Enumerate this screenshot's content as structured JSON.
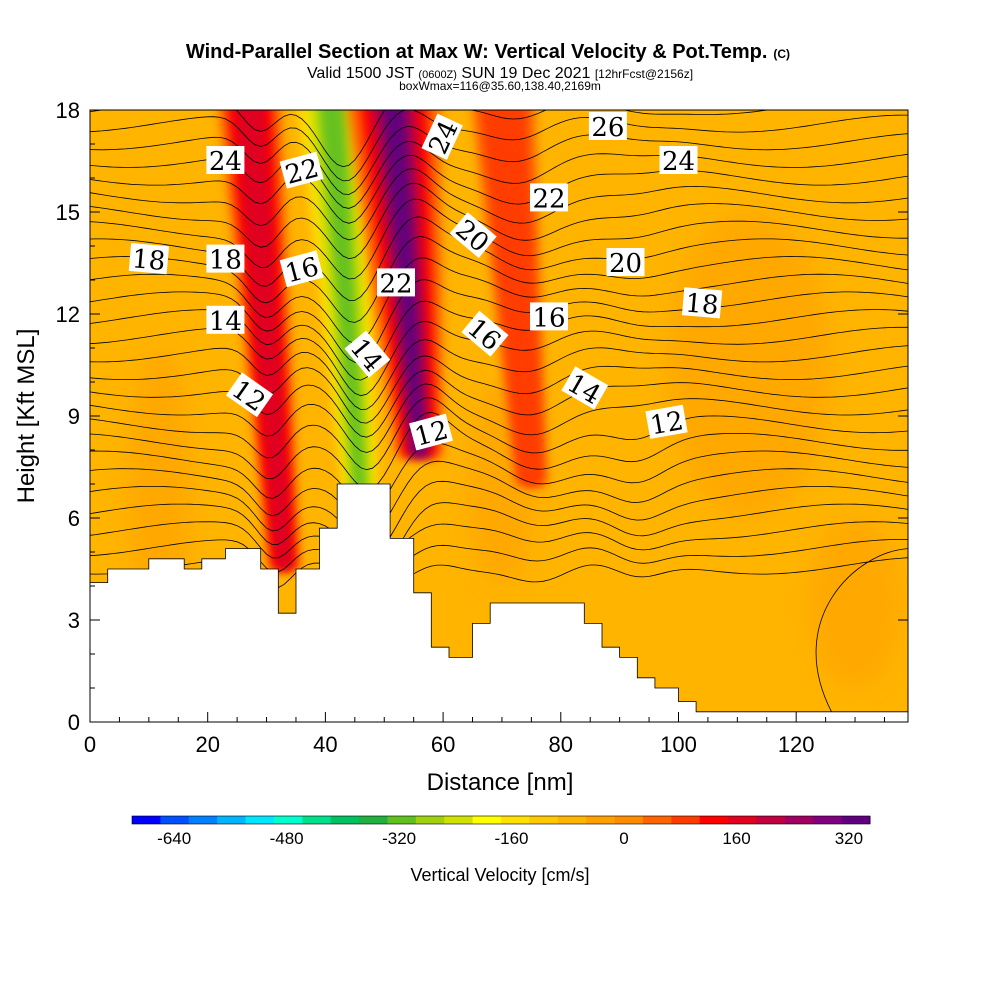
{
  "chart_data": {
    "type": "heatmap",
    "title": "Wind-Parallel Section at Max W: Vertical Velocity & Pot.Temp.",
    "title_mark": "(C)",
    "subtitle": {
      "valid_prefix": "Valid 1500 JST",
      "utc": "(0600Z)",
      "date": "SUN 19 Dec 2021",
      "forecast": "[12hrFcst@2156z]"
    },
    "box_line": "boxWmax=116@35.60,138.40,2169m",
    "xlabel": "Distance [nm]",
    "ylabel": "Height [Kft MSL]",
    "xlim": [
      0,
      139
    ],
    "ylim": [
      0,
      18
    ],
    "x_ticks": [
      0,
      20,
      40,
      60,
      80,
      100,
      120
    ],
    "y_ticks": [
      0,
      3,
      6,
      9,
      12,
      15,
      18
    ],
    "colorbar": {
      "label": "Vertical Velocity [cm/s]",
      "min": -700,
      "max": 350,
      "tick_values": [
        -640,
        -480,
        -320,
        -160,
        0,
        160,
        320
      ],
      "colors": [
        "#0000ff",
        "#0050ff",
        "#0080ff",
        "#00b4ff",
        "#00e6ff",
        "#00ffcc",
        "#00e08a",
        "#00c060",
        "#20b040",
        "#60c020",
        "#a0d010",
        "#d0e000",
        "#ffff00",
        "#ffe000",
        "#ffc800",
        "#ffb400",
        "#ffa000",
        "#ff8c00",
        "#ff6400",
        "#ff3c00",
        "#ff0000",
        "#e00020",
        "#c00040",
        "#a00060",
        "#800080",
        "#600080"
      ]
    },
    "base_fill_color": "#ffb400",
    "terrain_color": "#ffffff",
    "vertical_velocity_features": [
      {
        "x": 46,
        "z_bottom": 6.6,
        "z_top": 18,
        "value": -300,
        "note": "strong downdraft"
      },
      {
        "x": 56,
        "z_bottom": 7.8,
        "z_top": 18,
        "value": 330,
        "note": "strong updraft"
      },
      {
        "x": 33,
        "z_bottom": 4.5,
        "z_top": 18,
        "value": 150,
        "note": "updraft band"
      },
      {
        "x": 75,
        "z_bottom": 7,
        "z_top": 18,
        "value": 100,
        "note": "weak updraft"
      }
    ],
    "potential_temperature_contour_labels": [
      {
        "text": "24",
        "x": 23,
        "z": 16.5,
        "angle": 0
      },
      {
        "text": "22",
        "x": 36,
        "z": 16.2,
        "angle": -15
      },
      {
        "text": "24",
        "x": 60,
        "z": 17.2,
        "angle": -65
      },
      {
        "text": "26",
        "x": 88,
        "z": 17.5,
        "angle": 0
      },
      {
        "text": "24",
        "x": 100,
        "z": 16.5,
        "angle": 0
      },
      {
        "text": "22",
        "x": 78,
        "z": 15.4,
        "angle": 0
      },
      {
        "text": "20",
        "x": 65,
        "z": 14.3,
        "angle": 40
      },
      {
        "text": "18",
        "x": 10,
        "z": 13.6,
        "angle": 5
      },
      {
        "text": "18",
        "x": 23,
        "z": 13.6,
        "angle": 0
      },
      {
        "text": "16",
        "x": 36,
        "z": 13.3,
        "angle": -15
      },
      {
        "text": "22",
        "x": 52,
        "z": 12.9,
        "angle": 0
      },
      {
        "text": "20",
        "x": 91,
        "z": 13.5,
        "angle": 0
      },
      {
        "text": "18",
        "x": 104,
        "z": 12.3,
        "angle": 5
      },
      {
        "text": "14",
        "x": 23,
        "z": 11.8,
        "angle": 0
      },
      {
        "text": "16",
        "x": 67,
        "z": 11.4,
        "angle": 40
      },
      {
        "text": "16",
        "x": 78,
        "z": 11.9,
        "angle": 0
      },
      {
        "text": "14",
        "x": 47,
        "z": 10.8,
        "angle": 50
      },
      {
        "text": "12",
        "x": 27,
        "z": 9.6,
        "angle": 35
      },
      {
        "text": "14",
        "x": 84,
        "z": 9.8,
        "angle": 30
      },
      {
        "text": "12",
        "x": 58,
        "z": 8.5,
        "angle": -15
      },
      {
        "text": "12",
        "x": 98,
        "z": 8.8,
        "angle": -10
      }
    ],
    "terrain_profile": [
      [
        0,
        4.1
      ],
      [
        3,
        4.1
      ],
      [
        3,
        4.5
      ],
      [
        10,
        4.5
      ],
      [
        10,
        4.8
      ],
      [
        16,
        4.8
      ],
      [
        16,
        4.5
      ],
      [
        19,
        4.5
      ],
      [
        19,
        4.8
      ],
      [
        23,
        4.8
      ],
      [
        23,
        5.1
      ],
      [
        29,
        5.1
      ],
      [
        29,
        4.5
      ],
      [
        32,
        4.5
      ],
      [
        32,
        3.2
      ],
      [
        35,
        3.2
      ],
      [
        35,
        4.5
      ],
      [
        39,
        4.5
      ],
      [
        39,
        5.7
      ],
      [
        42,
        5.7
      ],
      [
        42,
        7.0
      ],
      [
        51,
        7.0
      ],
      [
        51,
        5.4
      ],
      [
        55,
        5.4
      ],
      [
        55,
        3.8
      ],
      [
        58,
        3.8
      ],
      [
        58,
        2.2
      ],
      [
        61,
        2.2
      ],
      [
        61,
        1.9
      ],
      [
        65,
        1.9
      ],
      [
        65,
        2.9
      ],
      [
        68,
        2.9
      ],
      [
        68,
        3.5
      ],
      [
        84,
        3.5
      ],
      [
        84,
        2.9
      ],
      [
        87,
        2.9
      ],
      [
        87,
        2.2
      ],
      [
        90,
        2.2
      ],
      [
        90,
        1.9
      ],
      [
        93,
        1.9
      ],
      [
        93,
        1.3
      ],
      [
        96,
        1.3
      ],
      [
        96,
        1.0
      ],
      [
        100,
        1.0
      ],
      [
        100,
        0.6
      ],
      [
        103,
        0.6
      ],
      [
        103,
        0.3
      ],
      [
        139,
        0.3
      ],
      [
        139,
        0
      ],
      [
        0,
        0
      ]
    ]
  }
}
